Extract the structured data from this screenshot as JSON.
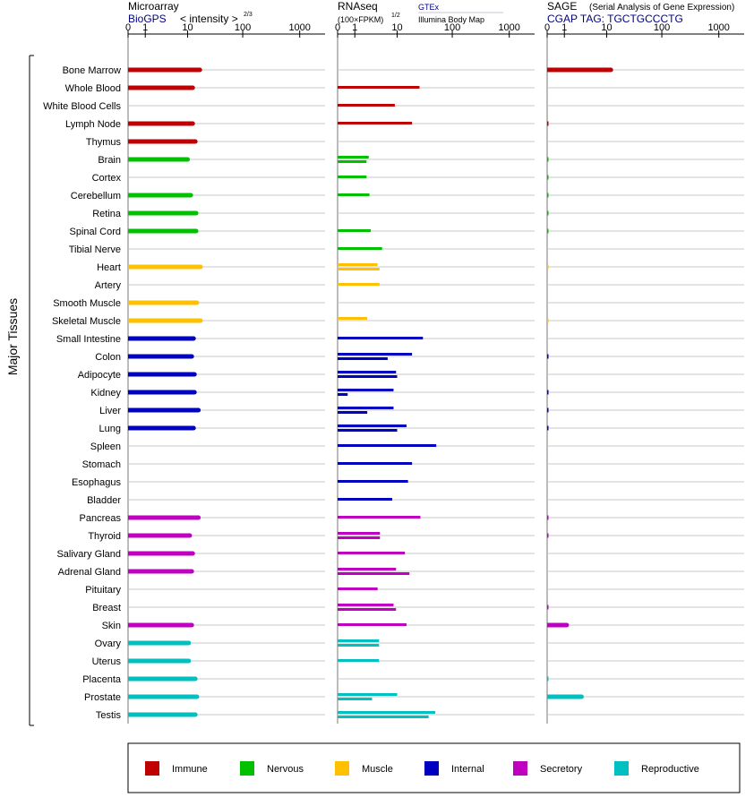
{
  "chart_data": {
    "type": "bar",
    "axis_label": "Major Tissues",
    "scale": "log",
    "tick_labels": [
      "0",
      "1",
      "10",
      "100",
      "1000"
    ],
    "tick_values": [
      0,
      1,
      10,
      100,
      1000
    ],
    "panels": [
      {
        "id": "microarray",
        "title": "Microarray",
        "source": "BioGPS",
        "unit_label": "< intensity >",
        "unit_exp": "2/3"
      },
      {
        "id": "rnaseq",
        "title": "RNAseq",
        "unit_label": "(100×FPKM)",
        "unit_exp": "1/2",
        "source_1": "GTEx",
        "source_2": "Illumina Body Map"
      },
      {
        "id": "sage",
        "title": "SAGE",
        "subtitle": "(Serial Analysis of Gene Expression)",
        "tag_label": "CGAP TAG: TGCTGCCCTG"
      }
    ],
    "categories": [
      {
        "name": "Immune",
        "color": "#c00000"
      },
      {
        "name": "Nervous",
        "color": "#00c000"
      },
      {
        "name": "Muscle",
        "color": "#ffc000"
      },
      {
        "name": "Internal",
        "color": "#0000c0"
      },
      {
        "name": "Secretory",
        "color": "#c000c0"
      },
      {
        "name": "Reproductive",
        "color": "#00c0c0"
      }
    ],
    "tissues": [
      {
        "name": "Bone Marrow",
        "cat": "Immune",
        "microarray": 17,
        "rnaseq": [],
        "sage": 12
      },
      {
        "name": "Whole Blood",
        "cat": "Immune",
        "microarray": 12.5,
        "rnaseq": [
          26
        ],
        "sage": null
      },
      {
        "name": "White Blood Cells",
        "cat": "Immune",
        "microarray": null,
        "rnaseq": [
          9
        ],
        "sage": null
      },
      {
        "name": "Lymph Node",
        "cat": "Immune",
        "microarray": 12.5,
        "rnaseq": [
          19
        ],
        "sage": 0.05
      },
      {
        "name": "Thymus",
        "cat": "Immune",
        "microarray": 14,
        "rnaseq": [],
        "sage": null
      },
      {
        "name": "Brain",
        "cat": "Nervous",
        "microarray": 10,
        "rnaseq": [
          2.5,
          2.2
        ],
        "sage": 0.05
      },
      {
        "name": "Cortex",
        "cat": "Nervous",
        "microarray": null,
        "rnaseq": [
          2.2
        ],
        "sage": 0.05
      },
      {
        "name": "Cerebellum",
        "cat": "Nervous",
        "microarray": 11.5,
        "rnaseq": [
          2.6
        ],
        "sage": 0.05
      },
      {
        "name": "Retina",
        "cat": "Nervous",
        "microarray": 14.5,
        "rnaseq": [],
        "sage": 0.05
      },
      {
        "name": "Spinal Cord",
        "cat": "Nervous",
        "microarray": 14.5,
        "rnaseq": [
          2.8
        ],
        "sage": 0.05
      },
      {
        "name": "Tibial Nerve",
        "cat": "Nervous",
        "microarray": null,
        "rnaseq": [
          5
        ],
        "sage": null
      },
      {
        "name": "Heart",
        "cat": "Muscle",
        "microarray": 17.5,
        "rnaseq": [
          4,
          4.4
        ],
        "sage": 0.02
      },
      {
        "name": "Artery",
        "cat": "Muscle",
        "microarray": null,
        "rnaseq": [
          4.4
        ],
        "sage": null
      },
      {
        "name": "Smooth Muscle",
        "cat": "Muscle",
        "microarray": 15,
        "rnaseq": [],
        "sage": null
      },
      {
        "name": "Skeletal Muscle",
        "cat": "Muscle",
        "microarray": 17.5,
        "rnaseq": [
          2.3,
          0.01
        ],
        "sage": 0.02
      },
      {
        "name": "Small Intestine",
        "cat": "Internal",
        "microarray": 13,
        "rnaseq": [
          30
        ],
        "sage": null
      },
      {
        "name": "Colon",
        "cat": "Internal",
        "microarray": 12,
        "rnaseq": [
          19,
          6.5
        ],
        "sage": 0.05
      },
      {
        "name": "Adipocyte",
        "cat": "Internal",
        "microarray": 13.5,
        "rnaseq": [
          9.5,
          10
        ],
        "sage": null
      },
      {
        "name": "Kidney",
        "cat": "Internal",
        "microarray": 13.5,
        "rnaseq": [
          8.5,
          0.5
        ],
        "sage": 0.05
      },
      {
        "name": "Liver",
        "cat": "Internal",
        "microarray": 16,
        "rnaseq": [
          8.5,
          2.3
        ],
        "sage": 0.05
      },
      {
        "name": "Lung",
        "cat": "Internal",
        "microarray": 13,
        "rnaseq": [
          15,
          10
        ],
        "sage": 0.05
      },
      {
        "name": "Spleen",
        "cat": "Internal",
        "microarray": null,
        "rnaseq": [
          52
        ],
        "sage": null
      },
      {
        "name": "Stomach",
        "cat": "Internal",
        "microarray": null,
        "rnaseq": [
          19
        ],
        "sage": null
      },
      {
        "name": "Esophagus",
        "cat": "Internal",
        "microarray": null,
        "rnaseq": [
          16
        ],
        "sage": null
      },
      {
        "name": "Bladder",
        "cat": "Internal",
        "microarray": null,
        "rnaseq": [
          8
        ],
        "sage": null
      },
      {
        "name": "Pancreas",
        "cat": "Secretory",
        "microarray": 16,
        "rnaseq": [
          27
        ],
        "sage": 0.05
      },
      {
        "name": "Thyroid",
        "cat": "Secretory",
        "microarray": 11,
        "rnaseq": [
          4.5,
          4.5
        ],
        "sage": 0.05
      },
      {
        "name": "Salivary Gland",
        "cat": "Secretory",
        "microarray": 12.5,
        "rnaseq": [
          14
        ],
        "sage": null
      },
      {
        "name": "Adrenal Gland",
        "cat": "Secretory",
        "microarray": 12,
        "rnaseq": [
          9.5,
          17
        ],
        "sage": null
      },
      {
        "name": "Pituitary",
        "cat": "Secretory",
        "microarray": null,
        "rnaseq": [
          4
        ],
        "sage": null
      },
      {
        "name": "Breast",
        "cat": "Secretory",
        "microarray": null,
        "rnaseq": [
          8.5,
          9.5
        ],
        "sage": 0.05
      },
      {
        "name": "Skin",
        "cat": "Secretory",
        "microarray": 12,
        "rnaseq": [
          15
        ],
        "sage": 1.2
      },
      {
        "name": "Ovary",
        "cat": "Reproductive",
        "microarray": 10.5,
        "rnaseq": [
          4.3,
          4.3
        ],
        "sage": null
      },
      {
        "name": "Uterus",
        "cat": "Reproductive",
        "microarray": 10.5,
        "rnaseq": [
          4.3
        ],
        "sage": null
      },
      {
        "name": "Placenta",
        "cat": "Reproductive",
        "microarray": 14,
        "rnaseq": [],
        "sage": 0.05
      },
      {
        "name": "Prostate",
        "cat": "Reproductive",
        "microarray": 15,
        "rnaseq": [
          10,
          3
        ],
        "sage": 3
      },
      {
        "name": "Testis",
        "cat": "Reproductive",
        "microarray": 14,
        "rnaseq": [
          50,
          38
        ],
        "sage": null
      }
    ]
  }
}
